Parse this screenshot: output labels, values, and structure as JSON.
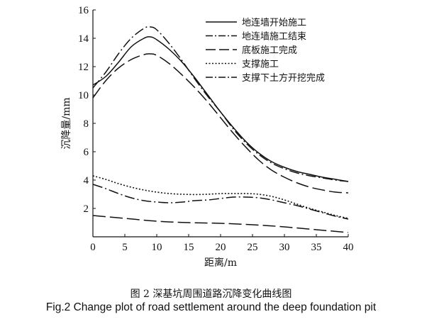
{
  "chart_data": {
    "type": "line",
    "xlabel": "距离/m",
    "ylabel": "沉降量/mm",
    "xlim": [
      0,
      40
    ],
    "ylim": [
      0,
      16
    ],
    "xticks": [
      0,
      5,
      10,
      15,
      20,
      25,
      30,
      35,
      40
    ],
    "yticks": [
      2,
      4,
      6,
      8,
      10,
      12,
      14,
      16
    ],
    "legend_position": "top-right",
    "grid": false,
    "series": [
      {
        "name": "地连墙开始施工",
        "style": "solid",
        "x": [
          0,
          2,
          4,
          6,
          8,
          9,
          10,
          12,
          14,
          16,
          18,
          20,
          22,
          24,
          26,
          28,
          30,
          32,
          34,
          36,
          38,
          40
        ],
        "y": [
          10.7,
          11.3,
          12.3,
          13.4,
          14.0,
          14.1,
          13.9,
          13.2,
          12.3,
          11.2,
          10.0,
          8.8,
          7.7,
          6.7,
          5.9,
          5.3,
          4.9,
          4.6,
          4.4,
          4.2,
          4.05,
          3.9
        ]
      },
      {
        "name": "地连墙施工结束",
        "style": "dashdot",
        "x": [
          0,
          2,
          4,
          6,
          8,
          9,
          10,
          12,
          14,
          16,
          18,
          20,
          22,
          24,
          26,
          28,
          30,
          32,
          34,
          36,
          38,
          40
        ],
        "y": [
          10.5,
          11.6,
          12.9,
          14.0,
          14.7,
          14.8,
          14.6,
          13.6,
          12.4,
          11.1,
          9.9,
          8.8,
          7.6,
          6.6,
          5.8,
          5.2,
          4.8,
          4.5,
          4.3,
          4.15,
          4.0,
          3.9
        ]
      },
      {
        "name": "底板施工完成",
        "style": "longdash",
        "x": [
          0,
          2,
          4,
          6,
          8,
          9,
          10,
          12,
          14,
          16,
          18,
          20,
          22,
          24,
          26,
          28,
          30,
          32,
          34,
          36,
          38,
          40
        ],
        "y": [
          9.8,
          11.0,
          11.9,
          12.5,
          12.85,
          12.9,
          12.8,
          12.2,
          11.4,
          10.5,
          9.5,
          8.4,
          7.3,
          6.3,
          5.4,
          4.7,
          4.2,
          3.8,
          3.5,
          3.3,
          3.15,
          3.1
        ]
      },
      {
        "name": "支撑施工",
        "style": "dotted",
        "x": [
          0,
          2,
          4,
          6,
          8,
          10,
          12,
          14,
          16,
          18,
          20,
          22,
          24,
          26,
          28,
          30,
          32,
          34,
          36,
          38,
          40
        ],
        "y": [
          4.3,
          4.05,
          3.75,
          3.5,
          3.3,
          3.15,
          3.05,
          3.0,
          2.98,
          3.0,
          3.05,
          3.05,
          3.05,
          3.0,
          2.85,
          2.6,
          2.3,
          2.0,
          1.75,
          1.5,
          1.3
        ]
      },
      {
        "name": "支撑下土方开挖完成",
        "style": "dashdot",
        "x": [
          0,
          2,
          4,
          6,
          8,
          10,
          12,
          14,
          16,
          18,
          20,
          22,
          24,
          26,
          28,
          30,
          32,
          34,
          36,
          38,
          40
        ],
        "y": [
          3.7,
          3.4,
          3.05,
          2.75,
          2.55,
          2.45,
          2.4,
          2.45,
          2.55,
          2.6,
          2.7,
          2.8,
          2.8,
          2.75,
          2.6,
          2.4,
          2.2,
          1.95,
          1.7,
          1.45,
          1.25
        ]
      },
      {
        "name": "",
        "style": "longdash",
        "x": [
          0,
          5,
          10,
          15,
          20,
          25,
          30,
          35,
          40
        ],
        "y": [
          1.5,
          1.3,
          1.1,
          1.0,
          0.95,
          0.85,
          0.7,
          0.5,
          0.3
        ]
      }
    ]
  },
  "caption": {
    "chinese": "图 2   深基坑周围道路沉降变化曲线图",
    "english": "Fig.2   Change plot of road settlement around the deep foundation pit"
  }
}
